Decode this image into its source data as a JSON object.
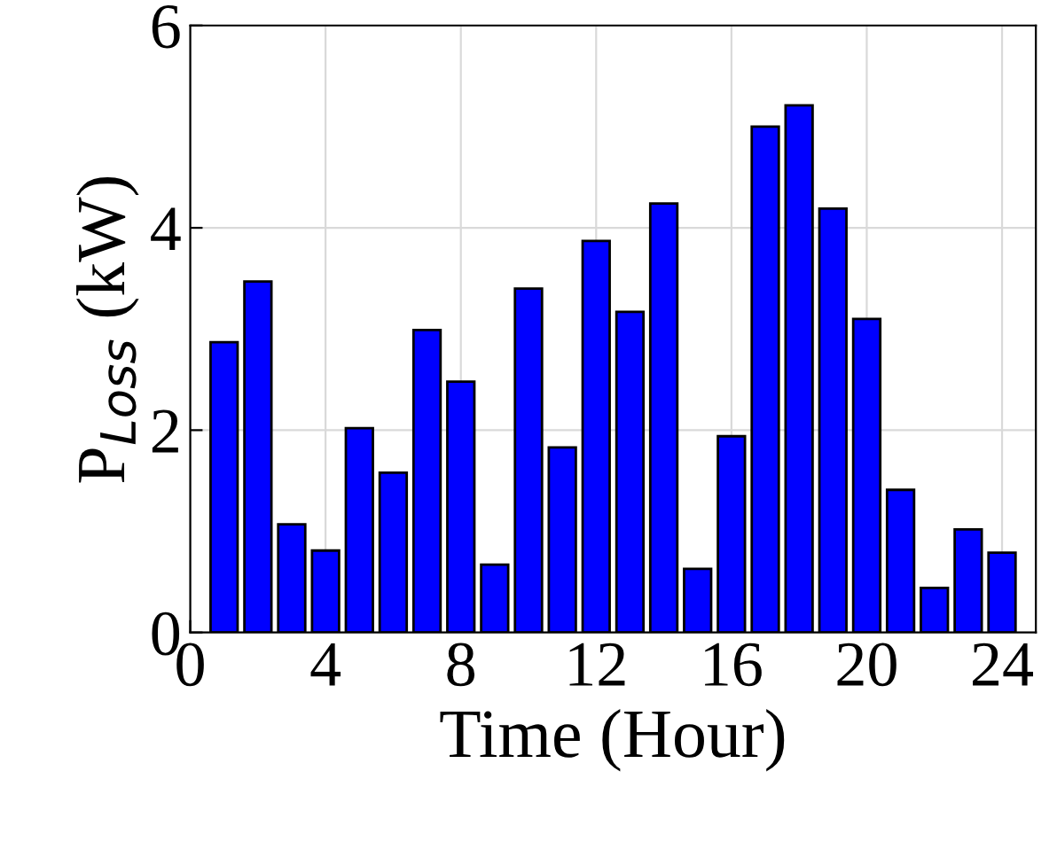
{
  "chart_data": {
    "type": "bar",
    "xlabel": "Time (Hour)",
    "ylabel": "P$_{Loss}$ (kW)",
    "x": [
      1,
      2,
      3,
      4,
      5,
      6,
      7,
      8,
      9,
      10,
      11,
      12,
      13,
      14,
      15,
      16,
      17,
      18,
      19,
      20,
      21,
      22,
      23,
      24
    ],
    "values": [
      2.87,
      3.47,
      1.07,
      0.81,
      2.02,
      1.58,
      2.99,
      2.48,
      0.67,
      3.4,
      1.83,
      3.87,
      3.17,
      4.24,
      0.63,
      1.94,
      5.0,
      5.21,
      4.19,
      3.1,
      1.41,
      0.44,
      1.02,
      0.79
    ],
    "color": "#0000ff",
    "xlim": [
      0,
      25
    ],
    "xticks": [
      0,
      4,
      8,
      12,
      16,
      20,
      24
    ],
    "ylim": [
      0,
      6
    ],
    "yticks": [
      0,
      2,
      4,
      6
    ],
    "grid": true
  }
}
